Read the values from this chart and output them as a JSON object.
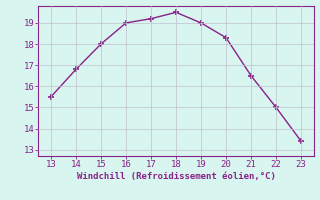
{
  "x": [
    13,
    14,
    15,
    16,
    17,
    18,
    19,
    20,
    21,
    22,
    23
  ],
  "y": [
    15.5,
    16.8,
    18.0,
    19.0,
    19.2,
    19.5,
    19.0,
    18.3,
    16.5,
    15.0,
    13.4
  ],
  "line_color": "#882288",
  "marker": "+",
  "marker_size": 4,
  "marker_linewidth": 1.2,
  "line_width": 1.0,
  "xlabel": "Windchill (Refroidissement éolien,°C)",
  "xlabel_color": "#882288",
  "xlabel_fontsize": 6.5,
  "xlim": [
    12.5,
    23.5
  ],
  "ylim": [
    12.7,
    19.8
  ],
  "xticks": [
    13,
    14,
    15,
    16,
    17,
    18,
    19,
    20,
    21,
    22,
    23
  ],
  "yticks": [
    13,
    14,
    15,
    16,
    17,
    18,
    19
  ],
  "tick_color": "#882288",
  "tick_fontsize": 6.5,
  "background_color": "#d8f5f0",
  "grid_color": "#c0c0d0",
  "grid_alpha": 1.0,
  "grid_linewidth": 0.5
}
